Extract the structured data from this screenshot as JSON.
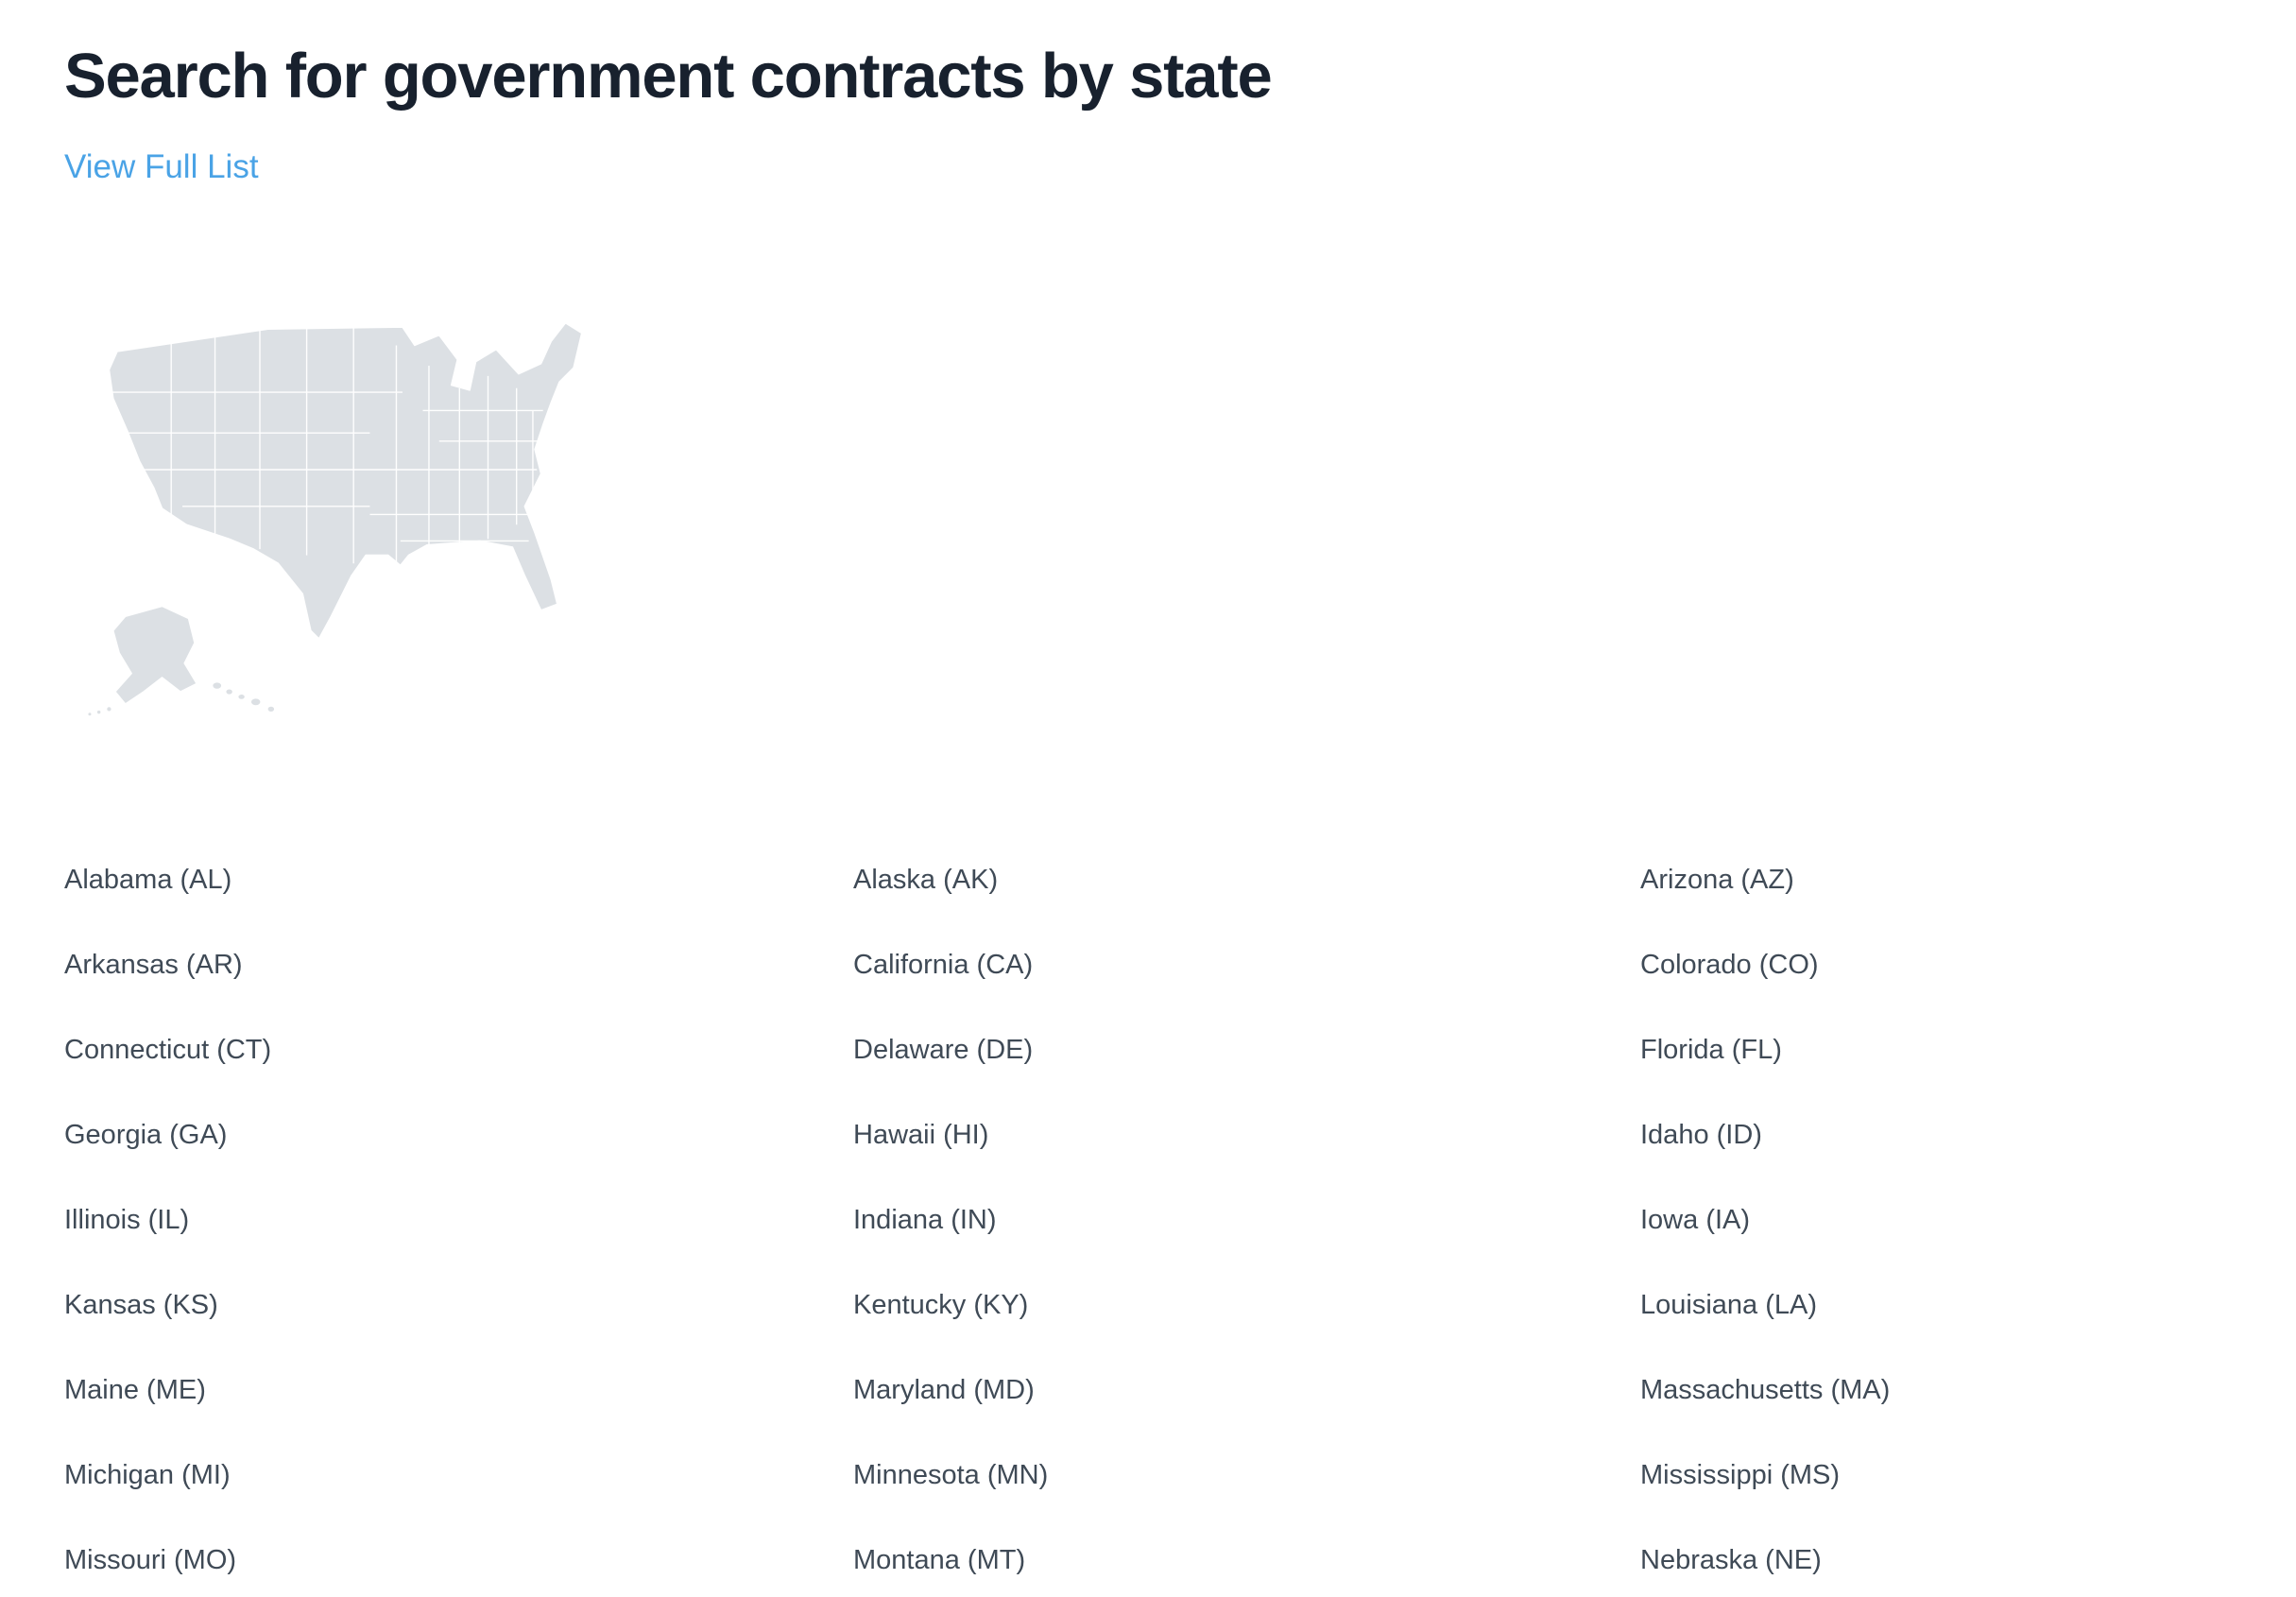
{
  "page": {
    "title": "Search for government contracts by state",
    "view_full_list_label": "View Full List"
  },
  "map": {
    "icon": "us-map-graphic"
  },
  "colors": {
    "title_color": "#18212e",
    "link_blue": "#4aa3e6",
    "state_text": "#3f4a56",
    "map_fill": "#dce0e4",
    "map_stroke": "#ffffff",
    "bg": "#ffffff"
  },
  "states": {
    "columns": 3,
    "items": [
      "Alabama (AL)",
      "Alaska (AK)",
      "Arizona (AZ)",
      "Arkansas (AR)",
      "California (CA)",
      "Colorado (CO)",
      "Connecticut (CT)",
      "Delaware (DE)",
      "Florida (FL)",
      "Georgia (GA)",
      "Hawaii (HI)",
      "Idaho (ID)",
      "Illinois (IL)",
      "Indiana (IN)",
      "Iowa (IA)",
      "Kansas (KS)",
      "Kentucky (KY)",
      "Louisiana (LA)",
      "Maine (ME)",
      "Maryland (MD)",
      "Massachusetts (MA)",
      "Michigan (MI)",
      "Minnesota (MN)",
      "Mississippi (MS)",
      "Missouri (MO)",
      "Montana (MT)",
      "Nebraska (NE)"
    ]
  }
}
